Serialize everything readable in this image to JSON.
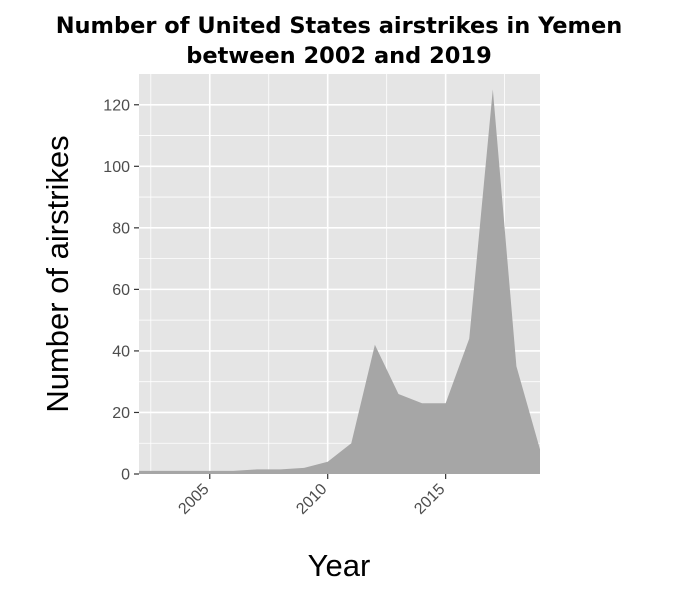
{
  "chart_data": {
    "type": "area",
    "title_lines": [
      "Number of United States airstrikes in Yemen",
      "between 2002 and 2019"
    ],
    "xlabel": "Year",
    "ylabel": "Number of airstrikes",
    "xlim": [
      2002,
      2019
    ],
    "ylim": [
      0,
      130
    ],
    "x_ticks": [
      2005,
      2010,
      2015
    ],
    "x_tick_labels": [
      "2005",
      "2010",
      "2015"
    ],
    "y_ticks": [
      0,
      20,
      40,
      60,
      80,
      100,
      120
    ],
    "y_tick_labels": [
      "0",
      "20",
      "40",
      "60",
      "80",
      "100",
      "120"
    ],
    "grid": true,
    "legend": "none",
    "fill_color": "#a6a6a6",
    "panel_color": "#e5e5e5",
    "grid_color": "#ffffff",
    "series": [
      {
        "x": [
          2002,
          2003,
          2004,
          2005,
          2006,
          2007,
          2008,
          2009,
          2010,
          2011,
          2012,
          2013,
          2014,
          2015,
          2016,
          2017,
          2018,
          2019
        ],
        "values": [
          1,
          1,
          1,
          1,
          1,
          1.5,
          1.5,
          2,
          4,
          10,
          42,
          26,
          23,
          23,
          44,
          125,
          35,
          8
        ]
      }
    ]
  }
}
